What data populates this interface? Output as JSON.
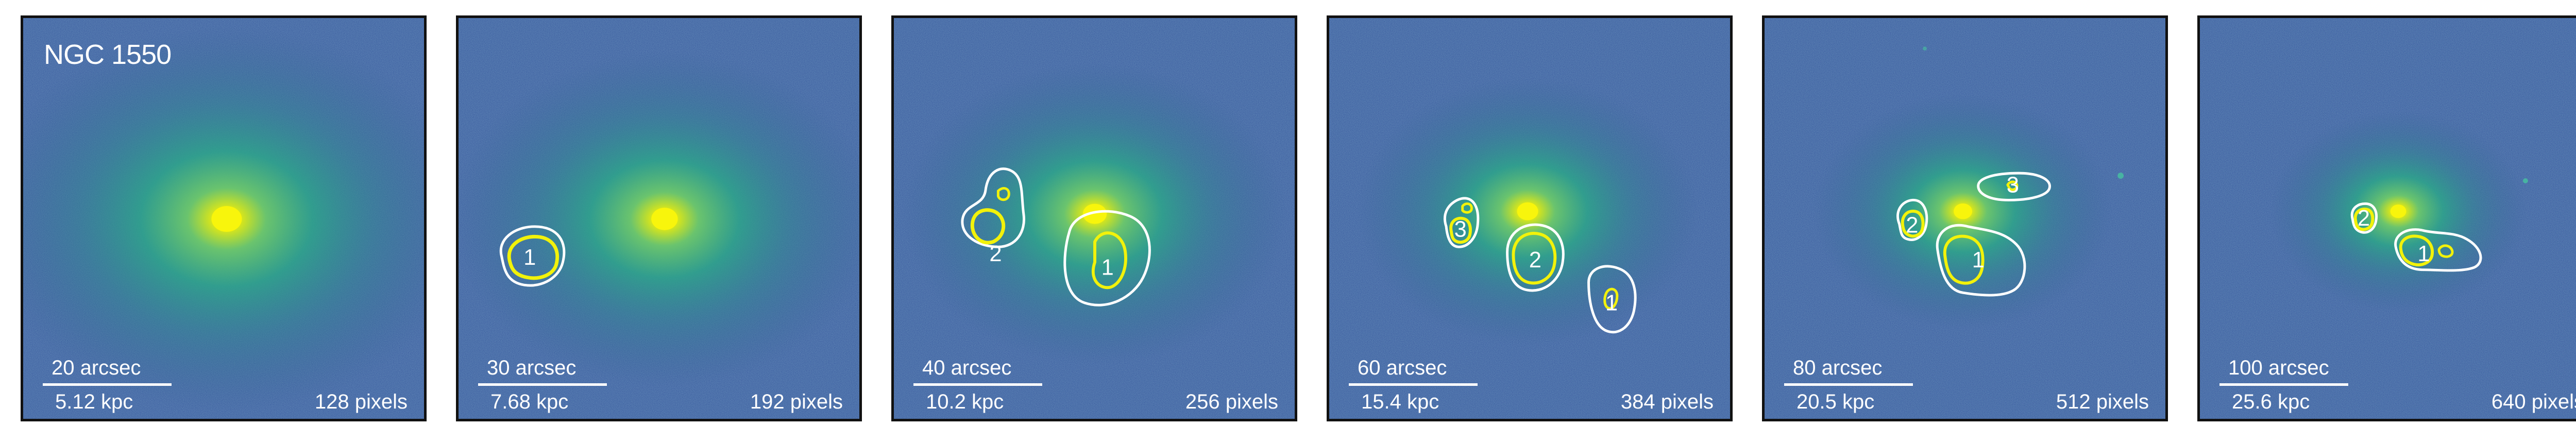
{
  "figure": {
    "galaxy": "NGC 1550",
    "colors": {
      "background": "#2f4d8a",
      "core": "#f2f20a",
      "halo": "#34b08e",
      "contour_outer": "#ffffff",
      "contour_inner": "#f2f20a"
    },
    "panels": [
      {
        "id": "p1",
        "arcsec": "20 arcsec",
        "kpc": "5.12 kpc",
        "pixels": "128 pixels",
        "regions": []
      },
      {
        "id": "p2",
        "arcsec": "30 arcsec",
        "kpc": "7.68 kpc",
        "pixels": "192 pixels",
        "regions": [
          {
            "label": "1"
          }
        ]
      },
      {
        "id": "p3",
        "arcsec": "40 arcsec",
        "kpc": "10.2 kpc",
        "pixels": "256 pixels",
        "regions": [
          {
            "label": "2"
          },
          {
            "label": "1"
          }
        ]
      },
      {
        "id": "p4",
        "arcsec": "60 arcsec",
        "kpc": "15.4 kpc",
        "pixels": "384 pixels",
        "regions": [
          {
            "label": "3"
          },
          {
            "label": "2"
          },
          {
            "label": "1"
          }
        ]
      },
      {
        "id": "p5",
        "arcsec": "80 arcsec",
        "kpc": "20.5 kpc",
        "pixels": "512 pixels",
        "regions": [
          {
            "label": "2"
          },
          {
            "label": "1"
          },
          {
            "label": "3"
          }
        ]
      },
      {
        "id": "p6",
        "arcsec": "100 arcsec",
        "kpc": "25.6 kpc",
        "pixels": "640 pixels",
        "regions": [
          {
            "label": "2"
          },
          {
            "label": "1"
          }
        ]
      }
    ]
  }
}
